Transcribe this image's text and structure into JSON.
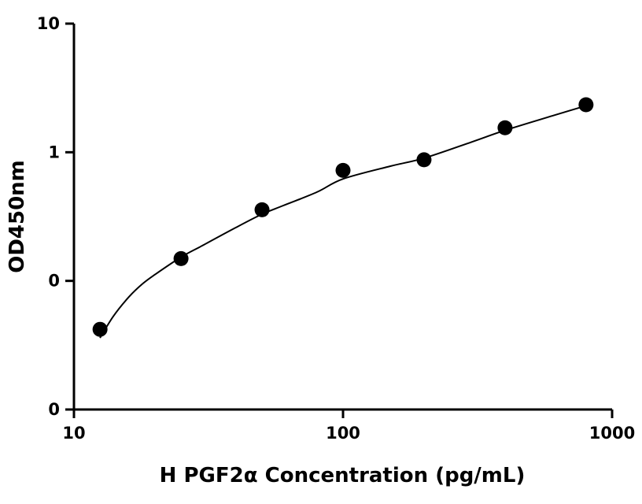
{
  "chart_data": {
    "type": "scatter",
    "title": "",
    "xlabel": "H PGF2α Concentration (pg/mL)",
    "ylabel": "OD450nm",
    "x_scale": "log",
    "y_scale": "log",
    "xlim": [
      10,
      1000
    ],
    "ylim": [
      0.01,
      10
    ],
    "x_ticks": [
      {
        "value": 10,
        "label": "10"
      },
      {
        "value": 100,
        "label": "100"
      },
      {
        "value": 1000,
        "label": "1000"
      }
    ],
    "y_ticks": [
      {
        "value": 0.01,
        "label": "0"
      },
      {
        "value": 0.1,
        "label": "0"
      },
      {
        "value": 1,
        "label": "1"
      },
      {
        "value": 10,
        "label": "10"
      }
    ],
    "grid": false,
    "legend": "none",
    "series": [
      {
        "x": [
          12.5,
          25,
          50,
          100,
          200,
          400,
          800
        ],
        "y": [
          0.042,
          0.149,
          0.357,
          0.723,
          0.874,
          1.55,
          2.34
        ]
      }
    ],
    "fit_curve": {
      "x_range": [
        12.5,
        800
      ],
      "points": [
        [
          12.5,
          0.036
        ],
        [
          14,
          0.053
        ],
        [
          16,
          0.075
        ],
        [
          18,
          0.095
        ],
        [
          20,
          0.112
        ],
        [
          25,
          0.153
        ],
        [
          30,
          0.188
        ],
        [
          40,
          0.26
        ],
        [
          50,
          0.33
        ],
        [
          60,
          0.385
        ],
        [
          80,
          0.49
        ],
        [
          100,
          0.62
        ],
        [
          150,
          0.78
        ],
        [
          200,
          0.9
        ],
        [
          300,
          1.2
        ],
        [
          400,
          1.48
        ],
        [
          600,
          1.92
        ],
        [
          800,
          2.3
        ]
      ]
    }
  }
}
